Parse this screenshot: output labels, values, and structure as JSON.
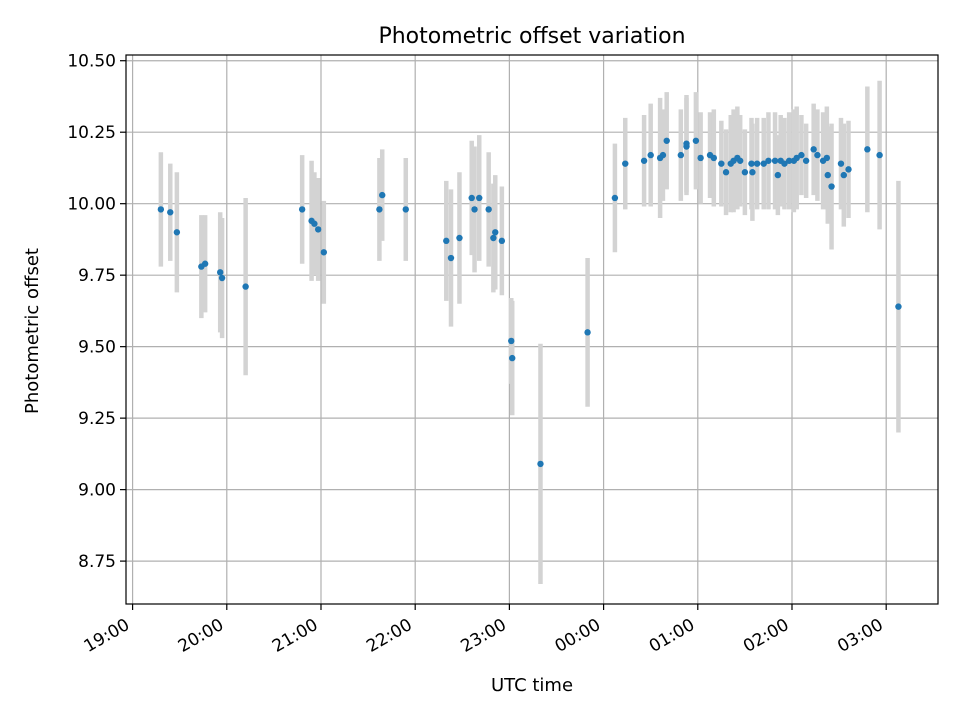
{
  "chart_data": {
    "type": "scatter",
    "title": "Photometric offset variation",
    "xlabel": "UTC time",
    "ylabel": "Photometric offset",
    "grid": true,
    "legend": "none",
    "x_unit": "hours since 19:00 UTC (axis wraps past midnight)",
    "x_ticks": [
      "19:00",
      "20:00",
      "21:00",
      "22:00",
      "23:00",
      "00:00",
      "01:00",
      "02:00",
      "03:00"
    ],
    "y_ticks": [
      "8.75",
      "9.00",
      "9.25",
      "9.50",
      "9.75",
      "10.00",
      "10.25",
      "10.50"
    ],
    "xlim": [
      -0.07,
      8.55
    ],
    "ylim": [
      8.6,
      10.52
    ],
    "colors": {
      "point": "#1f77b4",
      "errorbar": "#d3d3d3",
      "grid": "#b0b0b0"
    },
    "series": [
      {
        "x": [
          0.3,
          0.4,
          0.47,
          0.73,
          0.77,
          0.93,
          0.95,
          1.2,
          1.8,
          1.9,
          1.93,
          1.97,
          2.03,
          2.62,
          2.65,
          2.9,
          3.33,
          3.38,
          3.47,
          3.6,
          3.63,
          3.68,
          3.78,
          3.83,
          3.85,
          3.92,
          4.02,
          4.03,
          4.33,
          4.83,
          5.12,
          5.23,
          5.43,
          5.5,
          5.6,
          5.63,
          5.67,
          5.82,
          5.88,
          5.88,
          5.98,
          6.03,
          6.13,
          6.17,
          6.25,
          6.3,
          6.35,
          6.38,
          6.42,
          6.45,
          6.5,
          6.57,
          6.58,
          6.63,
          6.7,
          6.75,
          6.82,
          6.85,
          6.88,
          6.92,
          6.97,
          7.02,
          7.05,
          7.1,
          7.15,
          7.23,
          7.27,
          7.33,
          7.37,
          7.38,
          7.42,
          7.52,
          7.55,
          7.6,
          7.8,
          7.93,
          8.13
        ],
        "y": [
          9.98,
          9.97,
          9.9,
          9.78,
          9.79,
          9.76,
          9.74,
          9.71,
          9.98,
          9.94,
          9.93,
          9.91,
          9.83,
          9.98,
          10.03,
          9.98,
          9.87,
          9.81,
          9.88,
          10.02,
          9.98,
          10.02,
          9.98,
          9.88,
          9.9,
          9.87,
          9.52,
          9.46,
          9.09,
          9.55,
          10.02,
          10.14,
          10.15,
          10.17,
          10.16,
          10.17,
          10.22,
          10.17,
          10.2,
          10.21,
          10.22,
          10.16,
          10.17,
          10.16,
          10.14,
          10.11,
          10.14,
          10.15,
          10.16,
          10.15,
          10.11,
          10.14,
          10.11,
          10.14,
          10.14,
          10.15,
          10.15,
          10.1,
          10.15,
          10.14,
          10.15,
          10.15,
          10.16,
          10.17,
          10.15,
          10.19,
          10.17,
          10.15,
          10.16,
          10.1,
          10.06,
          10.14,
          10.1,
          10.12,
          10.19,
          10.17,
          9.64
        ],
        "error": [
          0.2,
          0.17,
          0.21,
          0.18,
          0.17,
          0.21,
          0.21,
          0.31,
          0.19,
          0.21,
          0.18,
          0.18,
          0.18,
          0.18,
          0.16,
          0.18,
          0.21,
          0.24,
          0.23,
          0.2,
          0.22,
          0.22,
          0.2,
          0.19,
          0.2,
          0.19,
          0.15,
          0.2,
          0.42,
          0.26,
          0.19,
          0.16,
          0.16,
          0.18,
          0.21,
          0.16,
          0.17,
          0.16,
          0.17,
          0.17,
          0.17,
          0.16,
          0.15,
          0.17,
          0.15,
          0.15,
          0.17,
          0.18,
          0.18,
          0.16,
          0.15,
          0.16,
          0.17,
          0.16,
          0.16,
          0.17,
          0.17,
          0.14,
          0.16,
          0.16,
          0.17,
          0.18,
          0.18,
          0.14,
          0.13,
          0.16,
          0.16,
          0.17,
          0.18,
          0.17,
          0.22,
          0.16,
          0.18,
          0.17,
          0.22,
          0.26,
          0.44
        ]
      }
    ]
  }
}
